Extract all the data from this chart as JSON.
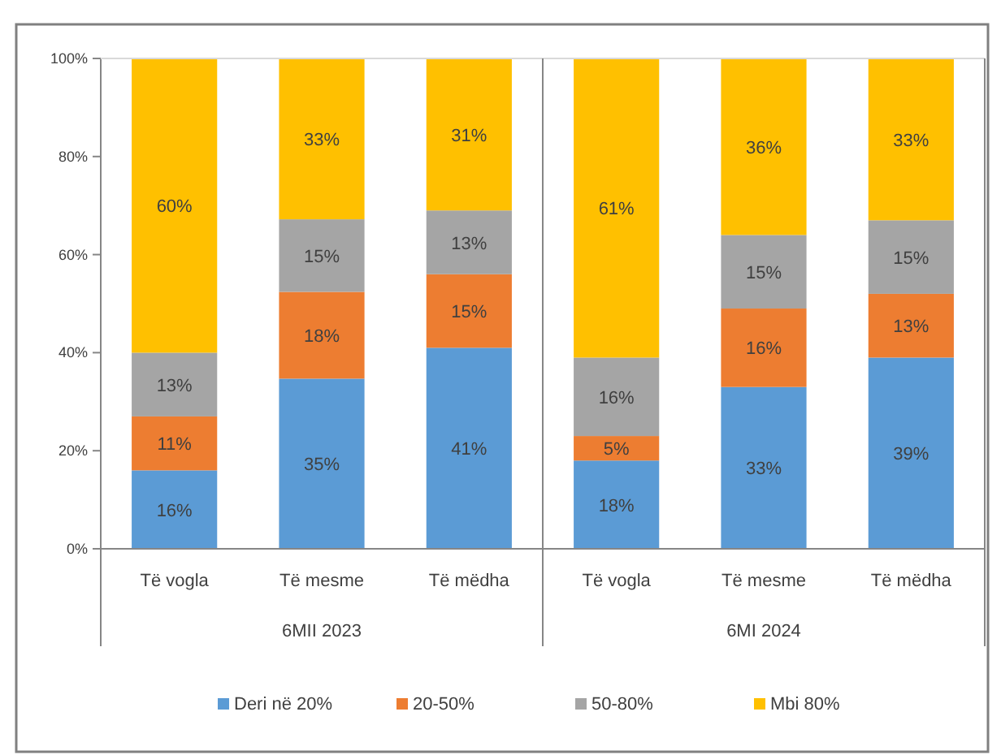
{
  "chart_data": {
    "type": "bar",
    "stacked": true,
    "categories": [
      "Të vogla",
      "Të mesme",
      "Të mëdha",
      "Të vogla",
      "Të mesme",
      "Të mëdha"
    ],
    "series": [
      {
        "name": "Deri në 20%",
        "color": "#5b9bd5",
        "values": [
          16,
          34.7,
          41,
          18,
          33,
          39
        ]
      },
      {
        "name": "20-50%",
        "color": "#ed7d31",
        "values": [
          11,
          17.7,
          15,
          5,
          16,
          13
        ]
      },
      {
        "name": "50-80%",
        "color": "#a5a5a5",
        "values": [
          13,
          14.8,
          13,
          16,
          15,
          15
        ]
      },
      {
        "name": "Mbi 80%",
        "color": "#ffc000",
        "values": [
          60,
          32.8,
          31,
          61,
          36,
          33
        ]
      }
    ],
    "value_labels": [
      [
        "16%",
        "35%",
        "41%",
        "18%",
        "33%",
        "39%"
      ],
      [
        "11%",
        "18%",
        "15%",
        "5%",
        "16%",
        "13%"
      ],
      [
        "13%",
        "15%",
        "13%",
        "16%",
        "15%",
        "15%"
      ],
      [
        "60%",
        "33%",
        "31%",
        "61%",
        "36%",
        "33%"
      ]
    ],
    "annotations": [
      "6MII 2023",
      "6MI 2024"
    ],
    "ylim": [
      0,
      100
    ],
    "yticks": [
      {
        "value": 0,
        "label": "0%"
      },
      {
        "value": 20,
        "label": "20%"
      },
      {
        "value": 40,
        "label": "40%"
      },
      {
        "value": 60,
        "label": "60%"
      },
      {
        "value": 80,
        "label": "80%"
      },
      {
        "value": 100,
        "label": "100%"
      }
    ],
    "grid": false,
    "legend": "bottom"
  }
}
